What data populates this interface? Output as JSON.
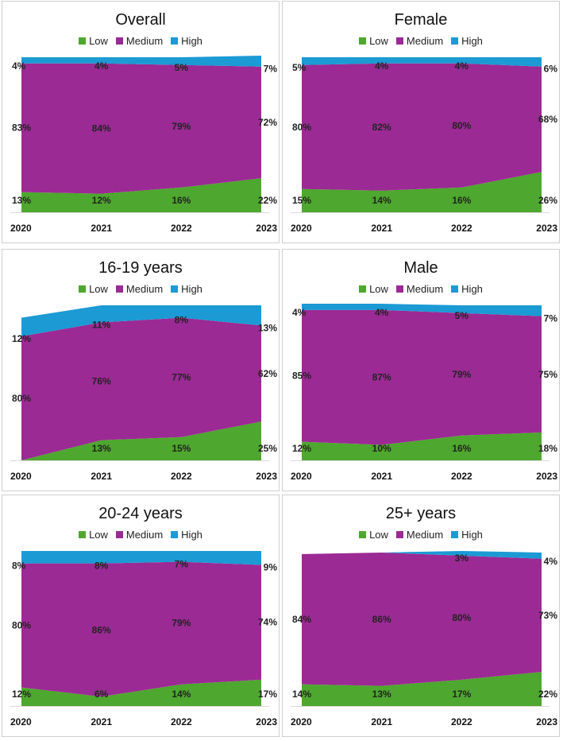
{
  "colors": {
    "low": "#4ea72e",
    "medium": "#9b2a94",
    "high": "#1b9ad4"
  },
  "chart_data": [
    {
      "type": "area",
      "stacked": true,
      "title": "Overall",
      "legend": [
        "Low",
        "Medium",
        "High"
      ],
      "legend_position": "top",
      "x": [
        "2020",
        "2021",
        "2022",
        "2023"
      ],
      "series": [
        {
          "name": "Low",
          "values": [
            13,
            12,
            16,
            22
          ]
        },
        {
          "name": "Medium",
          "values": [
            83,
            84,
            79,
            72
          ]
        },
        {
          "name": "High",
          "values": [
            4,
            4,
            5,
            7
          ]
        }
      ],
      "ylim": [
        0,
        100
      ]
    },
    {
      "type": "area",
      "stacked": true,
      "title": "Female",
      "legend": [
        "Low",
        "Medium",
        "High"
      ],
      "legend_position": "top",
      "x": [
        "2020",
        "2021",
        "2022",
        "2023"
      ],
      "series": [
        {
          "name": "Low",
          "values": [
            15,
            14,
            16,
            26
          ]
        },
        {
          "name": "Medium",
          "values": [
            80,
            82,
            80,
            68
          ]
        },
        {
          "name": "High",
          "values": [
            5,
            4,
            4,
            6
          ]
        }
      ],
      "ylim": [
        0,
        100
      ]
    },
    {
      "type": "area",
      "stacked": true,
      "title": "16-19 years",
      "legend": [
        "Low",
        "Medium",
        "High"
      ],
      "legend_position": "top",
      "x": [
        "2020",
        "2021",
        "2022",
        "2023"
      ],
      "series": [
        {
          "name": "Low",
          "values": [
            0,
            13,
            15,
            25
          ]
        },
        {
          "name": "Medium",
          "values": [
            80,
            76,
            77,
            62
          ]
        },
        {
          "name": "High",
          "values": [
            12,
            11,
            8,
            13
          ]
        }
      ],
      "value_labels": {
        "Low": [
          "",
          "13%",
          "15%",
          "25%"
        ]
      },
      "ylim": [
        0,
        100
      ]
    },
    {
      "type": "area",
      "stacked": true,
      "title": "Male",
      "legend": [
        "Low",
        "Medium",
        "High"
      ],
      "legend_position": "top",
      "x": [
        "2020",
        "2021",
        "2022",
        "2023"
      ],
      "series": [
        {
          "name": "Low",
          "values": [
            12,
            10,
            16,
            18
          ]
        },
        {
          "name": "Medium",
          "values": [
            85,
            87,
            79,
            75
          ]
        },
        {
          "name": "High",
          "values": [
            4,
            4,
            5,
            7
          ]
        }
      ],
      "ylim": [
        0,
        100
      ]
    },
    {
      "type": "area",
      "stacked": true,
      "title": "20-24 years",
      "legend": [
        "Low",
        "Medium",
        "High"
      ],
      "legend_position": "top",
      "x": [
        "2020",
        "2021",
        "2022",
        "2023"
      ],
      "series": [
        {
          "name": "Low",
          "values": [
            12,
            6,
            14,
            17
          ]
        },
        {
          "name": "Medium",
          "values": [
            80,
            86,
            79,
            74
          ]
        },
        {
          "name": "High",
          "values": [
            8,
            8,
            7,
            9
          ]
        }
      ],
      "ylim": [
        0,
        100
      ]
    },
    {
      "type": "area",
      "stacked": true,
      "title": "25+ years",
      "legend": [
        "Low",
        "Medium",
        "High"
      ],
      "legend_position": "top",
      "x": [
        "2020",
        "2021",
        "2022",
        "2023"
      ],
      "series": [
        {
          "name": "Low",
          "values": [
            14,
            13,
            17,
            22
          ]
        },
        {
          "name": "Medium",
          "values": [
            84,
            86,
            80,
            73
          ]
        },
        {
          "name": "High",
          "values": [
            0,
            0,
            3,
            4
          ]
        }
      ],
      "value_labels": {
        "High": [
          "",
          "",
          "3%",
          "4%"
        ]
      },
      "ylim": [
        0,
        100
      ]
    }
  ]
}
